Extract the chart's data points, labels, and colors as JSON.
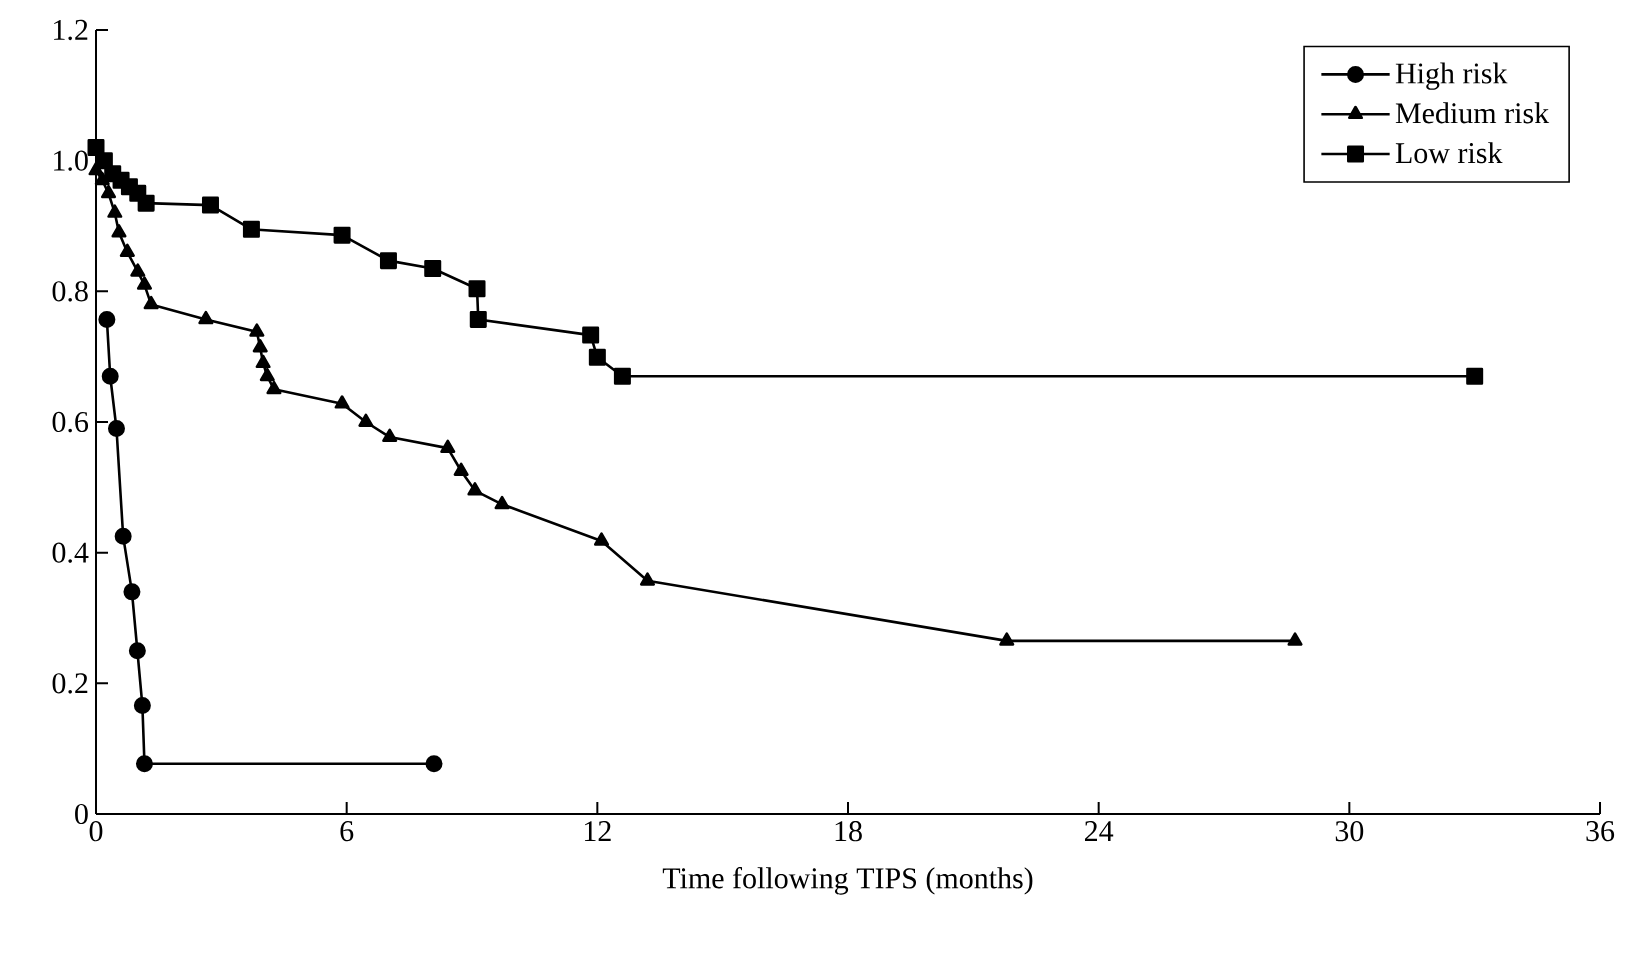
{
  "chart_data": {
    "type": "line",
    "xlabel": "Time following TIPS (months)",
    "xlim": [
      0,
      36
    ],
    "xticks": [
      0,
      6,
      12,
      18,
      24,
      30,
      36
    ],
    "ylim": [
      0,
      1.2
    ],
    "yticks": [
      0,
      0.2,
      0.4,
      0.6,
      0.8,
      {
        "value": 1.0,
        "label": "1.0"
      },
      1.2
    ],
    "grid": false,
    "legend": "top right",
    "series": [
      {
        "name": "High risk",
        "color": "#000000",
        "marker": "circle",
        "x": [
          0.26,
          0.34,
          0.49,
          0.65,
          0.86,
          0.99,
          1.11,
          1.16,
          8.09
        ],
        "values": [
          0.757,
          0.67,
          0.59,
          0.425,
          0.34,
          0.25,
          0.166,
          0.077,
          0.077
        ]
      },
      {
        "name": "Medium risk",
        "color": "#000000",
        "marker": "triangle",
        "x": [
          0,
          0.15,
          0.3,
          0.45,
          0.55,
          0.75,
          1.0,
          1.16,
          1.32,
          2.63,
          3.85,
          3.93,
          4.0,
          4.1,
          4.26,
          5.89,
          6.46,
          7.03,
          8.42,
          8.74,
          9.07,
          9.72,
          12.1,
          13.2,
          21.8,
          28.7
        ],
        "values": [
          0.985,
          0.97,
          0.95,
          0.92,
          0.89,
          0.86,
          0.83,
          0.81,
          0.78,
          0.757,
          0.738,
          0.714,
          0.69,
          0.67,
          0.65,
          0.628,
          0.6,
          0.577,
          0.56,
          0.525,
          0.495,
          0.474,
          0.418,
          0.357,
          0.265,
          0.265
        ]
      },
      {
        "name": "Low risk",
        "color": "#000000",
        "marker": "square",
        "x": [
          0,
          0.2,
          0.4,
          0.6,
          0.8,
          1.0,
          1.2,
          2.74,
          3.72,
          5.89,
          7.0,
          8.06,
          9.12,
          9.15,
          11.84,
          12.0,
          12.6,
          33.0
        ],
        "values": [
          1.02,
          1.0,
          0.98,
          0.97,
          0.96,
          0.95,
          0.935,
          0.932,
          0.895,
          0.886,
          0.847,
          0.835,
          0.804,
          0.757,
          0.733,
          0.699,
          0.67,
          0.67
        ]
      }
    ]
  }
}
